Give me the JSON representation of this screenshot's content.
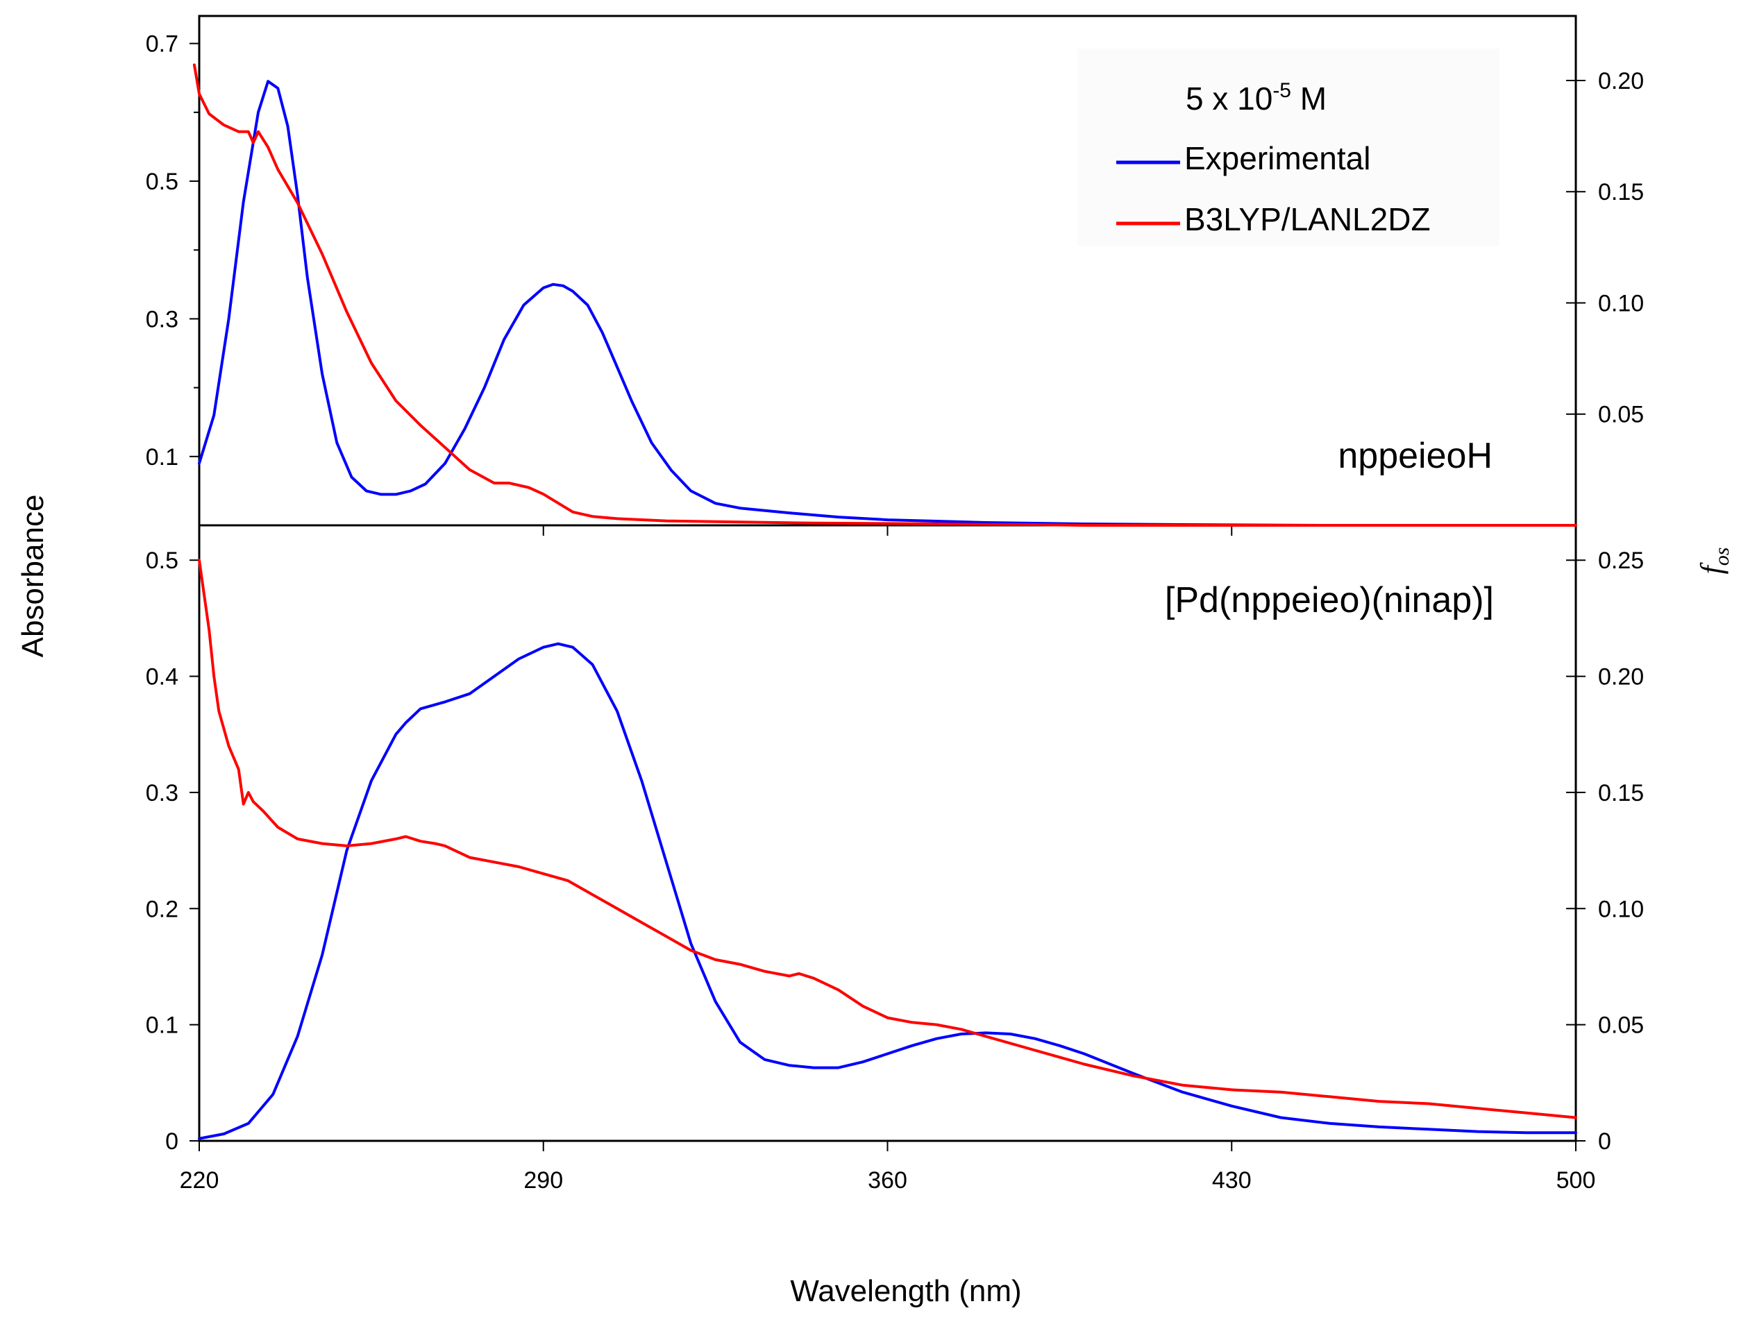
{
  "chart_data": {
    "type": "line",
    "xlabel": "Wavelength (nm)",
    "ylabel_left": "Absorbance",
    "ylabel_right": "f",
    "ylabel_right_sub": "os",
    "x_ticks": [
      "220",
      "290",
      "360",
      "430",
      "500"
    ],
    "xlim": [
      220,
      500
    ],
    "legend": {
      "concentration": "5 x 10",
      "concentration_exp": "-5",
      "concentration_unit": " M",
      "entries": [
        {
          "name": "Experimental",
          "color": "#0000ff"
        },
        {
          "name": "B3LYP/LANL2DZ",
          "color": "#ff0000"
        }
      ],
      "placement": "top-right"
    },
    "panels": [
      {
        "label": "nppeieoH",
        "left_ticks": [
          "0.1",
          "0.3",
          "0.5",
          "0.7"
        ],
        "left_tick_values": [
          0.1,
          0.3,
          0.5,
          0.7
        ],
        "right_ticks": [
          "0.05",
          "0.10",
          "0.15",
          "0.20"
        ],
        "right_tick_values": [
          0.05,
          0.1,
          0.15,
          0.2
        ],
        "ylim_left": [
          0.0,
          0.74
        ],
        "ylim_right": [
          0.0,
          0.229
        ],
        "series": [
          {
            "name": "Experimental",
            "color": "#0000ff",
            "axis": "left",
            "x": [
              220,
              223,
              226,
              229,
              232,
              234,
              236,
              238,
              240,
              242,
              245,
              248,
              251,
              254,
              257,
              260,
              263,
              266,
              270,
              274,
              278,
              282,
              286,
              290,
              292,
              294,
              296,
              299,
              302,
              305,
              308,
              312,
              316,
              320,
              325,
              330,
              340,
              350,
              360,
              370,
              380,
              390,
              400,
              420,
              450,
              480,
              500
            ],
            "y": [
              0.09,
              0.16,
              0.3,
              0.47,
              0.6,
              0.645,
              0.635,
              0.58,
              0.48,
              0.36,
              0.22,
              0.12,
              0.07,
              0.05,
              0.045,
              0.045,
              0.05,
              0.06,
              0.09,
              0.14,
              0.2,
              0.27,
              0.32,
              0.345,
              0.35,
              0.348,
              0.34,
              0.32,
              0.28,
              0.23,
              0.18,
              0.12,
              0.08,
              0.05,
              0.032,
              0.025,
              0.018,
              0.012,
              0.008,
              0.006,
              0.004,
              0.003,
              0.002,
              0.001,
              0.0,
              0.0,
              0.0
            ]
          },
          {
            "name": "B3LYP/LANL2DZ",
            "color": "#ff0000",
            "axis": "right",
            "x": [
              219,
              220,
              222,
              225,
              228,
              230,
              231,
              232,
              234,
              236,
              240,
              245,
              250,
              255,
              260,
              265,
              270,
              275,
              280,
              283,
              287,
              290,
              293,
              296,
              300,
              305,
              315,
              330,
              345,
              360,
              380,
              390,
              400,
              450,
              500
            ],
            "y": [
              0.207,
              0.194,
              0.185,
              0.18,
              0.177,
              0.177,
              0.172,
              0.177,
              0.17,
              0.16,
              0.145,
              0.122,
              0.096,
              0.073,
              0.056,
              0.045,
              0.035,
              0.025,
              0.019,
              0.019,
              0.017,
              0.014,
              0.01,
              0.006,
              0.004,
              0.003,
              0.002,
              0.0015,
              0.001,
              0.0008,
              0.0004,
              0.0003,
              0.0,
              0.0,
              0.0
            ]
          }
        ]
      },
      {
        "label": "[Pd(nppeieo)(ninap)]",
        "left_ticks": [
          "0",
          "0.1",
          "0.2",
          "0.3",
          "0.4",
          "0.5"
        ],
        "left_tick_values": [
          0,
          0.1,
          0.2,
          0.3,
          0.4,
          0.5
        ],
        "right_ticks": [
          "0",
          "0.05",
          "0.10",
          "0.15",
          "0.20",
          "0.25"
        ],
        "right_tick_values": [
          0,
          0.05,
          0.1,
          0.15,
          0.2,
          0.25
        ],
        "ylim_left": [
          0.0,
          0.53
        ],
        "ylim_right": [
          0.0,
          0.265
        ],
        "series": [
          {
            "name": "Experimental",
            "color": "#0000ff",
            "axis": "left",
            "x": [
              220,
              225,
              230,
              235,
              240,
              245,
              250,
              255,
              260,
              262,
              265,
              270,
              275,
              280,
              285,
              290,
              293,
              296,
              300,
              305,
              310,
              315,
              320,
              325,
              330,
              335,
              340,
              345,
              350,
              355,
              360,
              365,
              370,
              375,
              380,
              385,
              390,
              395,
              400,
              410,
              420,
              430,
              440,
              450,
              460,
              470,
              480,
              490,
              500
            ],
            "y": [
              0.002,
              0.006,
              0.015,
              0.04,
              0.09,
              0.16,
              0.25,
              0.31,
              0.35,
              0.36,
              0.372,
              0.378,
              0.385,
              0.4,
              0.415,
              0.425,
              0.428,
              0.425,
              0.41,
              0.37,
              0.31,
              0.24,
              0.17,
              0.12,
              0.085,
              0.07,
              0.065,
              0.063,
              0.063,
              0.068,
              0.075,
              0.082,
              0.088,
              0.092,
              0.093,
              0.092,
              0.088,
              0.082,
              0.075,
              0.058,
              0.042,
              0.03,
              0.02,
              0.015,
              0.012,
              0.01,
              0.008,
              0.007,
              0.007
            ]
          },
          {
            "name": "B3LYP/LANL2DZ",
            "color": "#ff0000",
            "axis": "right",
            "x": [
              220,
              221,
              222,
              223,
              224,
              226,
              228,
              229,
              230,
              231,
              233,
              236,
              240,
              245,
              250,
              255,
              260,
              262,
              265,
              268,
              270,
              275,
              280,
              285,
              290,
              295,
              300,
              305,
              310,
              315,
              320,
              325,
              330,
              335,
              340,
              342,
              345,
              350,
              355,
              360,
              365,
              370,
              375,
              380,
              390,
              400,
              410,
              420,
              430,
              440,
              450,
              460,
              470,
              480,
              490,
              500
            ],
            "y": [
              0.25,
              0.235,
              0.22,
              0.2,
              0.185,
              0.17,
              0.16,
              0.145,
              0.15,
              0.146,
              0.142,
              0.135,
              0.13,
              0.128,
              0.127,
              0.128,
              0.13,
              0.131,
              0.129,
              0.128,
              0.127,
              0.122,
              0.12,
              0.118,
              0.115,
              0.112,
              0.106,
              0.1,
              0.094,
              0.088,
              0.082,
              0.078,
              0.076,
              0.073,
              0.071,
              0.072,
              0.07,
              0.065,
              0.058,
              0.053,
              0.051,
              0.05,
              0.048,
              0.045,
              0.039,
              0.033,
              0.028,
              0.024,
              0.022,
              0.021,
              0.019,
              0.017,
              0.016,
              0.014,
              0.012,
              0.01
            ]
          }
        ]
      }
    ]
  }
}
